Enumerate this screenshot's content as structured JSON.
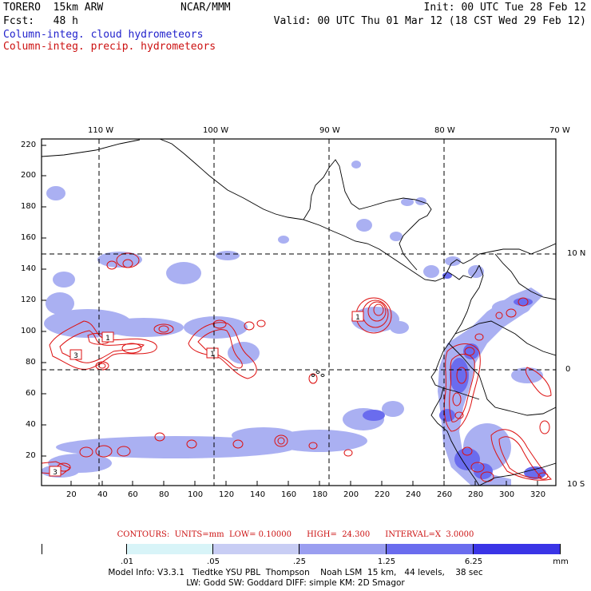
{
  "header": {
    "model_title": "TORERO  15km ARW",
    "org": "NCAR/MMM",
    "init": "Init: 00 UTC Tue 28 Feb 12",
    "fcst": "Fcst:   48 h",
    "valid": "Valid: 00 UTC Thu 01 Mar 12 (18 CST Wed 29 Feb 12)",
    "legend_blue": "Column-integ. cloud hydrometeors",
    "legend_red": "Column-integ. precip. hydrometeors"
  },
  "top_axis": [
    "110 W",
    "100 W",
    "90 W",
    "80 W",
    "70 W"
  ],
  "right_axis": [
    "10 N",
    "0",
    "10 S"
  ],
  "left_axis": [
    "220",
    "200",
    "180",
    "160",
    "140",
    "120",
    "100",
    "80",
    "60",
    "40",
    "20"
  ],
  "bottom_axis": [
    "20",
    "40",
    "60",
    "80",
    "100",
    "120",
    "140",
    "160",
    "180",
    "200",
    "220",
    "240",
    "260",
    "280",
    "300",
    "320"
  ],
  "contour_info": "CONTOURS:  UNITS=mm  LOW= 0.10000      HIGH=  24.300      INTERVAL=X  3.0000",
  "colorbar": {
    "labels": [
      ".01",
      ".05",
      ".25",
      "1.25",
      "6.25"
    ],
    "unit": "mm",
    "colors": [
      "#ffffff",
      "#d8f4f8",
      "#c8cdf4",
      "#9a9ef0",
      "#7274ee",
      "#4e4ee8",
      "#2c24e4"
    ]
  },
  "footer": {
    "line1": "Model Info: V3.3.1   Tiedtke YSU PBL  Thompson    Noah LSM  15 km,   44 levels,    38 sec",
    "line2": "LW: Godd SW: Goddard DIFF: simple KM: 2D Smagor"
  },
  "colors": {
    "cloud_fill": "#aab0f2",
    "cloud_core": "#6a6cee",
    "precip_contour": "#dd1111"
  },
  "markers": [
    "1",
    "1",
    "3",
    "1",
    "3"
  ]
}
